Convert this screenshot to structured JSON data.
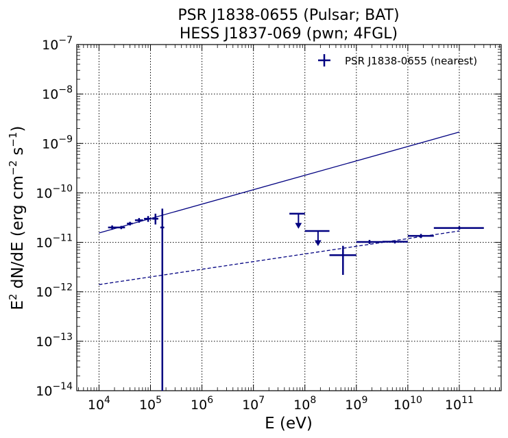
{
  "chart_data": {
    "type": "scatter",
    "title_line1": "PSR J1838-0655 (Pulsar; BAT)",
    "title_line2": "HESS J1837-069 (pwn; 4FGL)",
    "xlabel": "E (eV)",
    "ylabel_pre": "E",
    "ylabel_mid": " dN/dE (erg cm",
    "ylabel_post": " s",
    "ylabel_end": ")",
    "ylabel_sup1": "2",
    "ylabel_sup2": "−2",
    "ylabel_sup3": "−1",
    "xscale": "log",
    "yscale": "log",
    "xlim": [
      3700.0,
      650000000000.0
    ],
    "ylim": [
      1e-14,
      1e-07
    ],
    "grid": true,
    "legend_position": "top-right",
    "x_ticks": [
      {
        "exp": "4",
        "value": 10000.0
      },
      {
        "exp": "5",
        "value": 100000.0
      },
      {
        "exp": "6",
        "value": 1000000.0
      },
      {
        "exp": "7",
        "value": 10000000.0
      },
      {
        "exp": "8",
        "value": 100000000.0
      },
      {
        "exp": "9",
        "value": 1000000000.0
      },
      {
        "exp": "10",
        "value": 10000000000.0
      },
      {
        "exp": "11",
        "value": 100000000000.0
      }
    ],
    "y_ticks": [
      {
        "exp": "−14",
        "value": 1e-14
      },
      {
        "exp": "−13",
        "value": 1e-13
      },
      {
        "exp": "−12",
        "value": 1e-12
      },
      {
        "exp": "−11",
        "value": 1e-11
      },
      {
        "exp": "−10",
        "value": 1e-10
      },
      {
        "exp": "−9",
        "value": 1e-09
      },
      {
        "exp": "−8",
        "value": 1e-08
      },
      {
        "exp": "−7",
        "value": 1e-07
      }
    ],
    "series": [
      {
        "name": "PSR J1838-0655 (nearest)",
        "color": "#000080",
        "points": [
          {
            "x": 18000.0,
            "xlo": 15000.0,
            "xhi": 22000.0,
            "y": 2e-11,
            "ylo": 1.8e-11,
            "yhi": 2.2e-11
          },
          {
            "x": 27000.0,
            "xlo": 22000.0,
            "xhi": 32000.0,
            "y": 2e-11,
            "ylo": 1.85e-11,
            "yhi": 2.15e-11
          },
          {
            "x": 40000.0,
            "xlo": 35000.0,
            "xhi": 45000.0,
            "y": 2.4e-11,
            "ylo": 2.2e-11,
            "yhi": 2.6e-11
          },
          {
            "x": 60000.0,
            "xlo": 50000.0,
            "xhi": 72000.0,
            "y": 2.8e-11,
            "ylo": 2.5e-11,
            "yhi": 3.1e-11
          },
          {
            "x": 90000.0,
            "xlo": 75000.0,
            "xhi": 105000.0,
            "y": 3e-11,
            "ylo": 2.6e-11,
            "yhi": 3.4e-11
          },
          {
            "x": 125000.0,
            "xlo": 108000.0,
            "xhi": 142000.0,
            "y": 3e-11,
            "ylo": 2.3e-11,
            "yhi": 3.8e-11
          },
          {
            "x": 170000.0,
            "xlo": 155000.0,
            "xhi": 185000.0,
            "y": 2e-11,
            "ylo": 1e-14,
            "yhi": 4.8e-11
          },
          {
            "x": 75000000.0,
            "xlo": 50000000.0,
            "xhi": 100000000.0,
            "y": 3.8e-11,
            "upper_limit": true
          },
          {
            "x": 180000000.0,
            "xlo": 100000000.0,
            "xhi": 300000000.0,
            "y": 1.7e-11,
            "upper_limit": true
          },
          {
            "x": 550000000.0,
            "xlo": 300000000.0,
            "xhi": 1000000000.0,
            "y": 5.5e-12,
            "ylo": 2.2e-12,
            "yhi": 8.5e-12
          },
          {
            "x": 1800000000.0,
            "xlo": 1000000000.0,
            "xhi": 3200000000.0,
            "y": 1.02e-11,
            "ylo": 9.3e-12,
            "yhi": 1.12e-11
          },
          {
            "x": 5600000000.0,
            "xlo": 3200000000.0,
            "xhi": 10000000000.0,
            "y": 1.03e-11,
            "ylo": 9.5e-12,
            "yhi": 1.1e-11
          },
          {
            "x": 18000000000.0,
            "xlo": 10000000000.0,
            "xhi": 32000000000.0,
            "y": 1.35e-11,
            "ylo": 1.22e-11,
            "yhi": 1.48e-11
          },
          {
            "x": 100000000000.0,
            "xlo": 32000000000.0,
            "xhi": 300000000000.0,
            "y": 1.95e-11,
            "ylo": 1.8e-11,
            "yhi": 2.1e-11
          }
        ]
      }
    ],
    "models": [
      {
        "style": "solid",
        "x": [
          10000.0,
          100000000000.0
        ],
        "y": [
          1.55e-11,
          1.7e-09
        ]
      },
      {
        "style": "dashed",
        "x": [
          10000.0,
          100000000000.0
        ],
        "y": [
          1.4e-12,
          1.7e-11
        ]
      }
    ]
  }
}
